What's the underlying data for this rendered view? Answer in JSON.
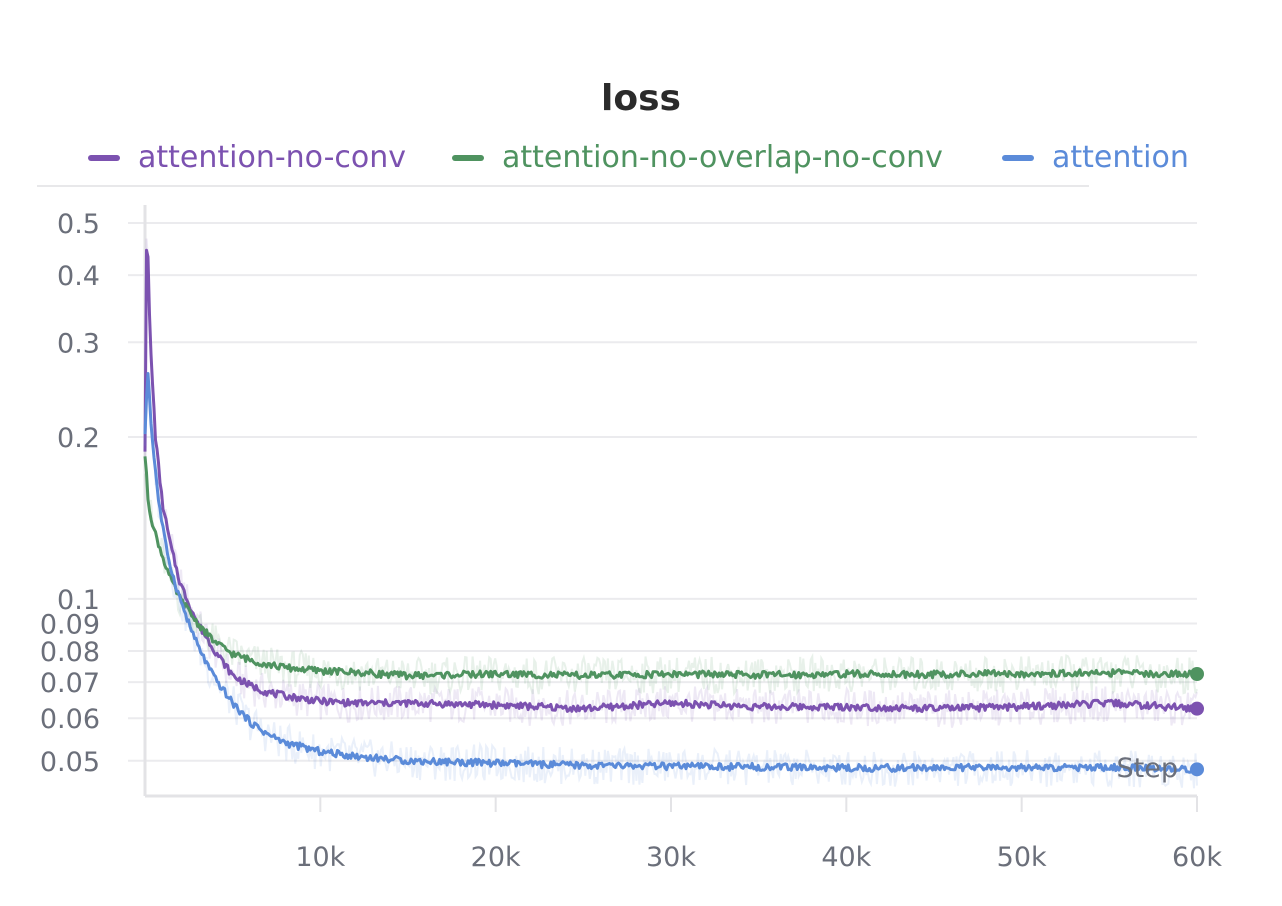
{
  "chart_data": {
    "type": "line",
    "title": "loss",
    "xlabel": "Step",
    "ylabel": "",
    "y_scale": "log",
    "xlim": [
      0,
      60000
    ],
    "ylim": [
      0.043,
      0.54
    ],
    "x_ticks": [
      10000,
      20000,
      30000,
      40000,
      50000,
      60000
    ],
    "x_tick_labels": [
      "10k",
      "20k",
      "30k",
      "40k",
      "50k",
      "60k"
    ],
    "y_ticks": [
      0.05,
      0.06,
      0.07,
      0.08,
      0.09,
      0.1,
      0.2,
      0.3,
      0.4,
      0.5
    ],
    "y_tick_labels": [
      "0.05",
      "0.06",
      "0.07",
      "0.08",
      "0.09",
      "0.1",
      "0.2",
      "0.3",
      "0.4",
      "0.5"
    ],
    "grid": true,
    "legend_position": "top",
    "series": [
      {
        "name": "attention-no-conv",
        "color": "#7c52b0",
        "x": [
          0,
          100,
          300,
          600,
          1000,
          1500,
          2000,
          3000,
          4000,
          5000,
          6000,
          7000,
          8000,
          10000,
          12000,
          15000,
          20000,
          25000,
          30000,
          35000,
          40000,
          45000,
          50000,
          55000,
          60000
        ],
        "values": [
          0.19,
          0.52,
          0.3,
          0.2,
          0.15,
          0.124,
          0.107,
          0.09,
          0.08,
          0.072,
          0.069,
          0.067,
          0.066,
          0.0645,
          0.064,
          0.064,
          0.0635,
          0.0625,
          0.064,
          0.063,
          0.063,
          0.0625,
          0.063,
          0.064,
          0.0625
        ]
      },
      {
        "name": "attention-no-overlap-no-conv",
        "color": "#4f9360",
        "x": [
          0,
          200,
          500,
          1000,
          1500,
          2000,
          3000,
          4000,
          5000,
          6000,
          7000,
          8000,
          10000,
          12000,
          15000,
          20000,
          25000,
          30000,
          35000,
          40000,
          45000,
          50000,
          55000,
          60000
        ],
        "values": [
          0.185,
          0.15,
          0.135,
          0.12,
          0.108,
          0.1,
          0.09,
          0.083,
          0.079,
          0.077,
          0.0755,
          0.0745,
          0.0735,
          0.073,
          0.072,
          0.0725,
          0.072,
          0.0725,
          0.0722,
          0.0725,
          0.0724,
          0.0726,
          0.0728,
          0.0725
        ]
      },
      {
        "name": "attention",
        "color": "#5b8bd9",
        "x": [
          0,
          150,
          400,
          800,
          1200,
          1600,
          2000,
          2500,
          3000,
          3500,
          4000,
          5000,
          6000,
          7000,
          8000,
          9000,
          10000,
          12000,
          15000,
          20000,
          25000,
          30000,
          35000,
          40000,
          45000,
          50000,
          55000,
          60000
        ],
        "values": [
          0.2,
          0.27,
          0.2,
          0.15,
          0.125,
          0.11,
          0.1,
          0.09,
          0.082,
          0.076,
          0.071,
          0.064,
          0.059,
          0.056,
          0.054,
          0.053,
          0.052,
          0.051,
          0.05,
          0.0495,
          0.049,
          0.0488,
          0.0487,
          0.0485,
          0.0485,
          0.0485,
          0.0486,
          0.0482
        ]
      }
    ]
  }
}
